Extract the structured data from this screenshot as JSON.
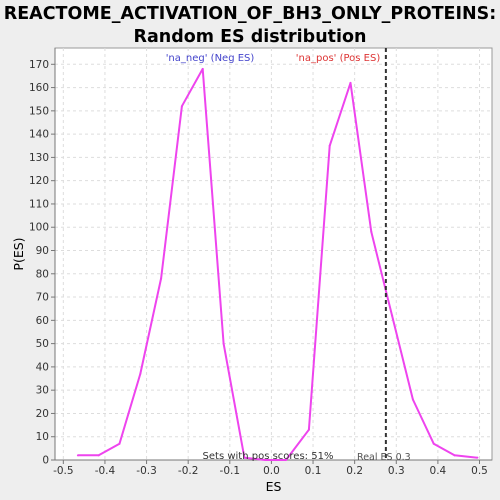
{
  "chart_data": {
    "type": "line",
    "title_lines": [
      "REACTOME_ACTIVATION_OF_BH3_ONLY_PROTEINS:",
      "Random ES distribution"
    ],
    "xlabel": "ES",
    "ylabel": "P(ES)",
    "xlim": [
      -0.52,
      0.53
    ],
    "ylim": [
      0,
      177
    ],
    "x_ticks": [
      -0.5,
      -0.4,
      -0.3,
      -0.2,
      -0.1,
      0.0,
      0.1,
      0.2,
      0.3,
      0.4,
      0.5
    ],
    "x_tick_labels": [
      "-0.5",
      "-0.4",
      "-0.3",
      "-0.2",
      "-0.1",
      "0.0",
      "0.1",
      "0.2",
      "0.3",
      "0.4",
      "0.5"
    ],
    "y_ticks": [
      0,
      10,
      20,
      30,
      40,
      50,
      60,
      70,
      80,
      90,
      100,
      110,
      120,
      130,
      140,
      150,
      160,
      170
    ],
    "grid": true,
    "line_color": "#ee44ee",
    "series": [
      {
        "x": [
          -0.465,
          -0.415,
          -0.365,
          -0.315,
          -0.265,
          -0.215,
          -0.165,
          -0.115,
          -0.065,
          -0.015,
          0.035,
          0.09,
          0.14,
          0.19,
          0.24,
          0.29,
          0.34,
          0.39,
          0.44,
          0.495
        ],
        "values": [
          2,
          2,
          7,
          37,
          78,
          152,
          168,
          50,
          1,
          0,
          0,
          13,
          135,
          162,
          98,
          62,
          26,
          7,
          2,
          1
        ]
      }
    ],
    "real_es": {
      "x": 0.275,
      "color": "#333333",
      "label": "Real ES 0.3"
    },
    "annotations": {
      "neg_label": "'na_neg' (Neg ES)",
      "neg_color": "#4444cc",
      "pos_label": "'na_pos' (Pos ES)",
      "pos_color": "#dd3333",
      "sets_text": "Sets with pos scores: 51%"
    }
  }
}
